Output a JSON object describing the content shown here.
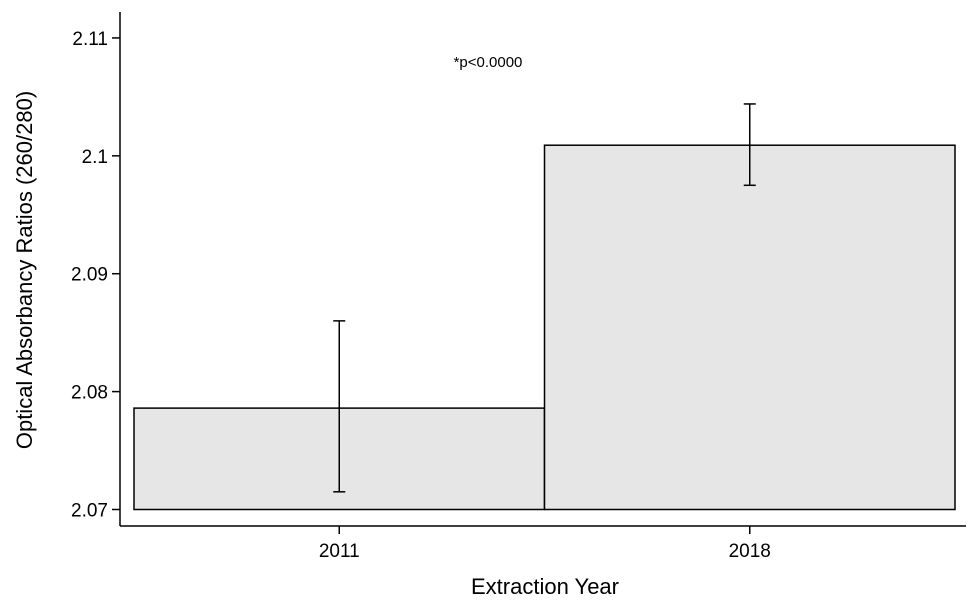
{
  "chart_data": {
    "type": "bar",
    "title": "",
    "xlabel": "Extraction Year",
    "ylabel": "Optical Absorbancy Ratios (260/280)",
    "categories": [
      "2011",
      "2018"
    ],
    "values": [
      2.0786,
      2.1009
    ],
    "error_low": [
      2.0715,
      2.0975
    ],
    "error_high": [
      2.086,
      2.1044
    ],
    "ylim": [
      2.0686,
      2.1122
    ],
    "yticks": [
      "2.07",
      "2.08",
      "2.09",
      "2.1",
      "2.11"
    ],
    "baseline": 2.07,
    "annotation": "*p<0.0000",
    "grid": false,
    "legend": "none",
    "colors": {
      "bar_fill": "#e6e6e6",
      "bar_stroke": "#000000",
      "axis": "#000000"
    }
  }
}
